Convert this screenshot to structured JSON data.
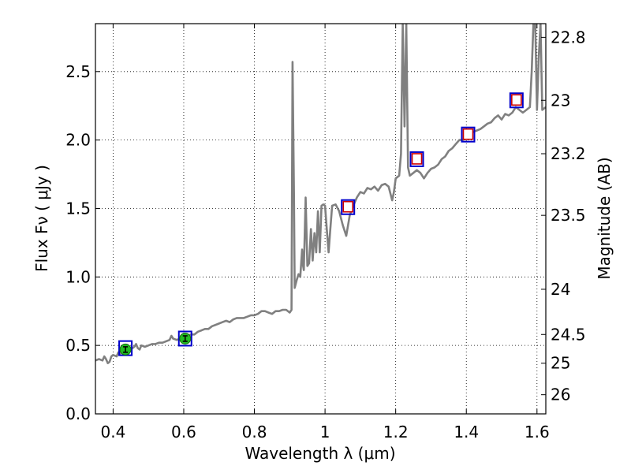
{
  "chart_data": {
    "type": "line",
    "xlabel": "Wavelength  λ (μm)",
    "ylabel": "Flux  Fν  ( μJy )",
    "y2label": "Magnitude (AB)",
    "xlim": [
      0.35,
      1.625
    ],
    "ylim": [
      0.0,
      2.85
    ],
    "grid": true,
    "x_ticks": [
      0.4,
      0.6,
      0.8,
      1.0,
      1.2,
      1.4,
      1.6
    ],
    "x_tick_labels": [
      "0.4",
      "0.6",
      "0.8",
      "1",
      "1.2",
      "1.4",
      "1.6"
    ],
    "y_ticks": [
      0.0,
      0.5,
      1.0,
      1.5,
      2.0,
      2.5
    ],
    "y_tick_labels": [
      "0.0",
      "0.5",
      "1.0",
      "1.5",
      "2.0",
      "2.5"
    ],
    "y2_ticks": [
      {
        "label": "22.8",
        "flux": 2.75
      },
      {
        "label": "23",
        "flux": 2.29
      },
      {
        "label": "23.2",
        "flux": 1.9
      },
      {
        "label": "23.5",
        "flux": 1.45
      },
      {
        "label": "24",
        "flux": 0.91
      },
      {
        "label": "24.5",
        "flux": 0.58
      },
      {
        "label": "25",
        "flux": 0.37
      },
      {
        "label": "26",
        "flux": 0.14
      }
    ],
    "colors": {
      "sed": "#808080",
      "box": "#0000cc",
      "model_square": "#cc0000",
      "obs_point": "#22bb22",
      "errorbar": "#000000",
      "grid": "#000000"
    },
    "series": [
      {
        "style": "line",
        "points": [
          [
            0.35,
            0.39
          ],
          [
            0.36,
            0.4
          ],
          [
            0.37,
            0.39
          ],
          [
            0.375,
            0.42
          ],
          [
            0.38,
            0.4
          ],
          [
            0.385,
            0.37
          ],
          [
            0.39,
            0.38
          ],
          [
            0.395,
            0.42
          ],
          [
            0.4,
            0.43
          ],
          [
            0.41,
            0.42
          ],
          [
            0.415,
            0.45
          ],
          [
            0.42,
            0.44
          ],
          [
            0.43,
            0.48
          ],
          [
            0.435,
            0.46
          ],
          [
            0.44,
            0.48
          ],
          [
            0.45,
            0.47
          ],
          [
            0.46,
            0.49
          ],
          [
            0.465,
            0.51
          ],
          [
            0.47,
            0.48
          ],
          [
            0.475,
            0.47
          ],
          [
            0.48,
            0.5
          ],
          [
            0.49,
            0.49
          ],
          [
            0.5,
            0.5
          ],
          [
            0.51,
            0.51
          ],
          [
            0.52,
            0.51
          ],
          [
            0.53,
            0.52
          ],
          [
            0.54,
            0.52
          ],
          [
            0.55,
            0.53
          ],
          [
            0.56,
            0.54
          ],
          [
            0.565,
            0.57
          ],
          [
            0.57,
            0.55
          ],
          [
            0.58,
            0.54
          ],
          [
            0.59,
            0.55
          ],
          [
            0.6,
            0.56
          ],
          [
            0.61,
            0.57
          ],
          [
            0.62,
            0.58
          ],
          [
            0.63,
            0.58
          ],
          [
            0.64,
            0.6
          ],
          [
            0.65,
            0.61
          ],
          [
            0.66,
            0.62
          ],
          [
            0.67,
            0.62
          ],
          [
            0.68,
            0.64
          ],
          [
            0.69,
            0.65
          ],
          [
            0.7,
            0.66
          ],
          [
            0.71,
            0.67
          ],
          [
            0.72,
            0.68
          ],
          [
            0.73,
            0.67
          ],
          [
            0.74,
            0.69
          ],
          [
            0.75,
            0.7
          ],
          [
            0.76,
            0.7
          ],
          [
            0.77,
            0.7
          ],
          [
            0.78,
            0.71
          ],
          [
            0.79,
            0.72
          ],
          [
            0.8,
            0.72
          ],
          [
            0.81,
            0.73
          ],
          [
            0.82,
            0.75
          ],
          [
            0.83,
            0.75
          ],
          [
            0.84,
            0.74
          ],
          [
            0.85,
            0.73
          ],
          [
            0.86,
            0.75
          ],
          [
            0.87,
            0.75
          ],
          [
            0.88,
            0.76
          ],
          [
            0.89,
            0.76
          ],
          [
            0.9,
            0.74
          ],
          [
            0.905,
            0.76
          ],
          [
            0.908,
            2.57
          ],
          [
            0.912,
            1.6
          ],
          [
            0.914,
            0.92
          ],
          [
            0.92,
            0.98
          ],
          [
            0.925,
            1.02
          ],
          [
            0.93,
            1.0
          ],
          [
            0.935,
            1.2
          ],
          [
            0.938,
            1.08
          ],
          [
            0.94,
            1.05
          ],
          [
            0.945,
            1.58
          ],
          [
            0.95,
            1.08
          ],
          [
            0.955,
            1.1
          ],
          [
            0.96,
            1.35
          ],
          [
            0.965,
            1.12
          ],
          [
            0.97,
            1.32
          ],
          [
            0.975,
            1.18
          ],
          [
            0.98,
            1.48
          ],
          [
            0.985,
            1.18
          ],
          [
            0.99,
            1.52
          ],
          [
            0.995,
            1.53
          ],
          [
            1.0,
            1.52
          ],
          [
            1.005,
            1.35
          ],
          [
            1.01,
            1.18
          ],
          [
            1.015,
            1.35
          ],
          [
            1.02,
            1.52
          ],
          [
            1.03,
            1.53
          ],
          [
            1.04,
            1.48
          ],
          [
            1.05,
            1.38
          ],
          [
            1.06,
            1.3
          ],
          [
            1.07,
            1.45
          ],
          [
            1.08,
            1.52
          ],
          [
            1.09,
            1.58
          ],
          [
            1.1,
            1.62
          ],
          [
            1.11,
            1.61
          ],
          [
            1.12,
            1.65
          ],
          [
            1.13,
            1.64
          ],
          [
            1.14,
            1.66
          ],
          [
            1.15,
            1.63
          ],
          [
            1.16,
            1.67
          ],
          [
            1.17,
            1.68
          ],
          [
            1.18,
            1.66
          ],
          [
            1.19,
            1.56
          ],
          [
            1.195,
            1.62
          ],
          [
            1.2,
            1.72
          ],
          [
            1.21,
            1.74
          ],
          [
            1.215,
            1.9
          ],
          [
            1.22,
            2.85
          ],
          [
            1.225,
            2.1
          ],
          [
            1.23,
            2.85
          ],
          [
            1.235,
            1.8
          ],
          [
            1.24,
            1.74
          ],
          [
            1.25,
            1.76
          ],
          [
            1.26,
            1.78
          ],
          [
            1.27,
            1.76
          ],
          [
            1.28,
            1.72
          ],
          [
            1.29,
            1.76
          ],
          [
            1.3,
            1.79
          ],
          [
            1.31,
            1.8
          ],
          [
            1.32,
            1.82
          ],
          [
            1.33,
            1.86
          ],
          [
            1.34,
            1.88
          ],
          [
            1.35,
            1.92
          ],
          [
            1.36,
            1.94
          ],
          [
            1.37,
            1.97
          ],
          [
            1.38,
            2.0
          ],
          [
            1.39,
            2.0
          ],
          [
            1.4,
            2.02
          ],
          [
            1.41,
            2.04
          ],
          [
            1.42,
            2.06
          ],
          [
            1.43,
            2.07
          ],
          [
            1.44,
            2.08
          ],
          [
            1.45,
            2.1
          ],
          [
            1.46,
            2.12
          ],
          [
            1.47,
            2.13
          ],
          [
            1.48,
            2.16
          ],
          [
            1.49,
            2.18
          ],
          [
            1.5,
            2.15
          ],
          [
            1.51,
            2.19
          ],
          [
            1.52,
            2.18
          ],
          [
            1.53,
            2.2
          ],
          [
            1.54,
            2.24
          ],
          [
            1.55,
            2.22
          ],
          [
            1.56,
            2.2
          ],
          [
            1.57,
            2.22
          ],
          [
            1.58,
            2.24
          ],
          [
            1.585,
            2.5
          ],
          [
            1.59,
            2.85
          ],
          [
            1.595,
            2.85
          ],
          [
            1.6,
            2.22
          ],
          [
            1.605,
            2.6
          ],
          [
            1.61,
            2.85
          ],
          [
            1.615,
            2.22
          ],
          [
            1.625,
            2.24
          ]
        ]
      },
      {
        "style": "boxes",
        "points": [
          [
            0.435,
            0.48
          ],
          [
            0.604,
            0.55
          ],
          [
            1.065,
            1.51
          ],
          [
            1.26,
            1.86
          ],
          [
            1.405,
            2.04
          ],
          [
            1.542,
            2.29
          ]
        ]
      },
      {
        "style": "squares",
        "points": [
          [
            1.065,
            1.51
          ],
          [
            1.26,
            1.86
          ],
          [
            1.405,
            2.04
          ],
          [
            1.542,
            2.29
          ]
        ]
      },
      {
        "style": "points",
        "points": [
          [
            0.435,
            0.47,
            0.02
          ],
          [
            0.604,
            0.55,
            0.02
          ]
        ]
      }
    ]
  }
}
